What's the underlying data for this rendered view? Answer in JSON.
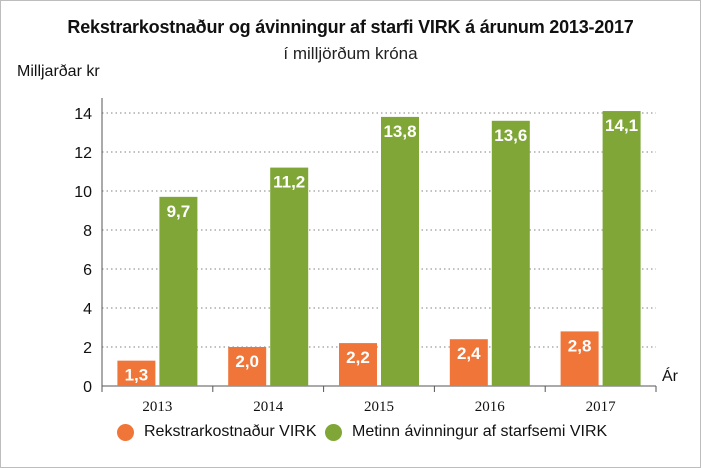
{
  "chart_data": {
    "type": "bar",
    "title": "Rekstrarkostnaður og ávinningur af starfi VIRK á árunum 2013-2017",
    "subtitle": "í milljörðum króna",
    "ylabel": "Milljarðar kr",
    "xlabel": "Ár",
    "categories": [
      "2013",
      "2014",
      "2015",
      "2016",
      "2017"
    ],
    "series": [
      {
        "name": "Rekstrarkostnaður VIRK",
        "color": "#f07539",
        "values": [
          1.3,
          2.0,
          2.2,
          2.4,
          2.8
        ],
        "labels": [
          "1,3",
          "2,0",
          "2,2",
          "2,4",
          "2,8"
        ]
      },
      {
        "name": "Metinn ávinningur af starfsemi VIRK",
        "color": "#7fa637",
        "values": [
          9.7,
          11.2,
          13.8,
          13.6,
          14.1
        ],
        "labels": [
          "9,7",
          "11,2",
          "13,8",
          "13,6",
          "14,1"
        ]
      }
    ],
    "yticks": [
      0,
      2,
      4,
      6,
      8,
      10,
      12,
      14
    ],
    "ylim": [
      0,
      14
    ],
    "grid": true,
    "legend_position": "bottom"
  }
}
